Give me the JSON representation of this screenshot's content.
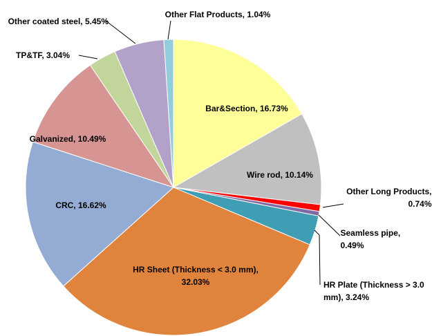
{
  "chart_data": {
    "type": "pie",
    "values": [
      16.73,
      10.14,
      0.74,
      0.49,
      3.24,
      32.03,
      16.62,
      10.49,
      3.04,
      5.45,
      1.04
    ],
    "value_labels": [
      "Bar&Section, 16.73%",
      "Wire rod, 10.14%",
      "Other Long Products, 0.74%",
      "Seamless pipe, 0.49%",
      "HR Plate (Thickness > 3.0 mm), 3.24%",
      "HR Sheet (Thickness < 3.0 mm), 32.03%",
      "CRC, 16.62%",
      "Galvanized, 10.49%",
      "TP&TF, 3.04%",
      "Other coated steel, 5.45%",
      "Other Flat Products, 1.04%"
    ],
    "colors": [
      "#ffff99",
      "#c0c0c0",
      "#ff0000",
      "#7f6aa6",
      "#3f9db4",
      "#e0843d",
      "#94abd4",
      "#d69593",
      "#c2d69b",
      "#b2a1c8",
      "#93cddd"
    ]
  }
}
